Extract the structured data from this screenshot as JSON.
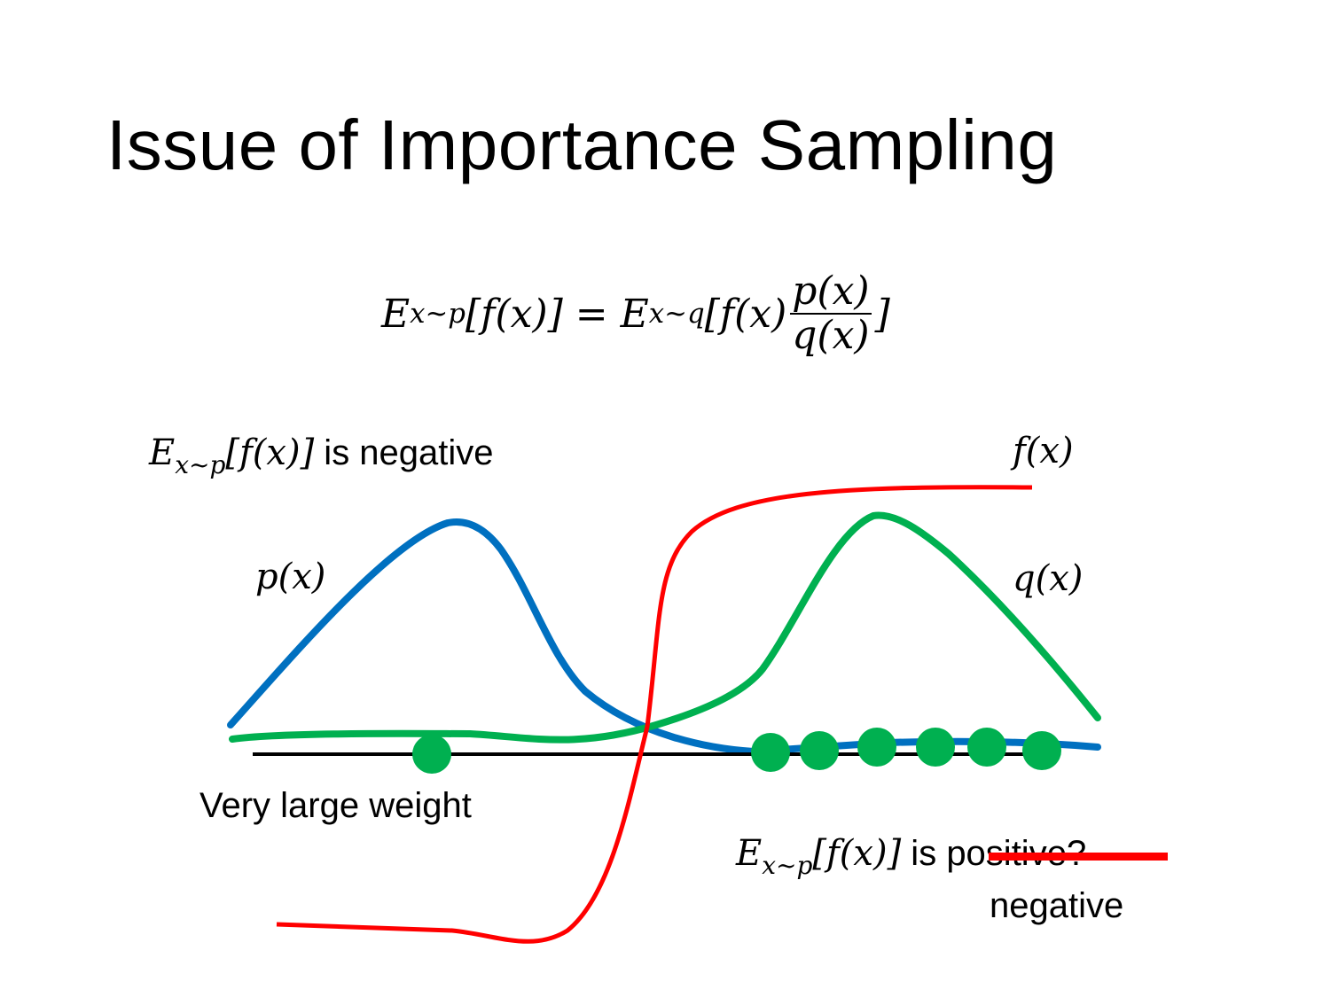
{
  "title": "Issue of Importance Sampling",
  "formula": {
    "lhs": "E",
    "lhs_sub": "x~p",
    "lhs_body": "[f(x)]",
    "equals": "=",
    "rhs": "E",
    "rhs_sub": "x~q",
    "rhs_body": "[f(x)",
    "frac_num": "p(x)",
    "frac_den": "q(x)",
    "close": "]"
  },
  "labels": {
    "top_left_E": "E",
    "top_left_sub": "x~p",
    "top_left_body": "[f(x)]",
    "top_left_text": " is negative",
    "fx": "f(x)",
    "px": "p(x)",
    "qx": "q(x)",
    "very_large_weight": "Very large weight",
    "bottom_E": "E",
    "bottom_sub": "x~p",
    "bottom_body": "[f(x)]",
    "bottom_is": " is ",
    "bottom_struck": "positive?",
    "bottom_correction": "negative"
  },
  "colors": {
    "p_curve": "#0070c0",
    "q_curve": "#00b050",
    "f_curve": "#ff0000",
    "axis": "#000000",
    "samples": "#00b050",
    "strike": "#ff0000"
  }
}
